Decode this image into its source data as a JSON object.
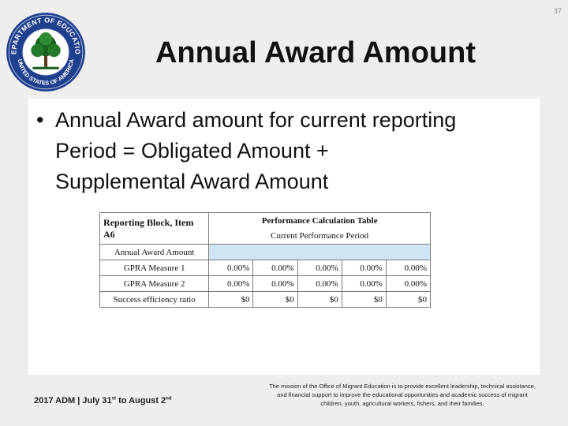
{
  "page_number": "37",
  "seal": {
    "icon": "department-of-education-seal-icon",
    "top_text": "DEPARTMENT OF EDUCATION",
    "bottom_text": "UNITED STATES OF AMERICA",
    "colors": {
      "ring": "#1f3f8f",
      "inner": "#ffffff",
      "tree": "#1c5e20"
    }
  },
  "title": "Annual Award Amount",
  "bullet": {
    "text": "Annual Award amount for current reporting\nPeriod = Obligated Amount +\nSupplemental Award Amount"
  },
  "table": {
    "block_label": "Reporting Block, Item A6",
    "heading": "Performance Calculation Table",
    "subheading": "Current Performance Period",
    "highlight_color": "#cfe5f3",
    "rows": [
      {
        "label": "Annual Award Amount",
        "cells": [
          "",
          "",
          "",
          "",
          ""
        ]
      },
      {
        "label": "GPRA Measure 1",
        "cells": [
          "0.00%",
          "0.00%",
          "0.00%",
          "0.00%",
          "0.00%"
        ]
      },
      {
        "label": "GPRA Measure 2",
        "cells": [
          "0.00%",
          "0.00%",
          "0.00%",
          "0.00%",
          "0.00%"
        ]
      },
      {
        "label": "Success efficiency ratio",
        "cells": [
          "$0",
          "$0",
          "$0",
          "$0",
          "$0"
        ]
      }
    ]
  },
  "footer": {
    "left_prefix": "2017 ADM | July 31",
    "left_sup1": "st",
    "left_mid": " to August 2",
    "left_sup2": "nd",
    "mission": "The mission of the Office of Migrant Education is to provide excellent leadership, technical assistance, and financial support to improve the educational opportunities and academic success of migrant children, youth, agricultural workers, fishers, and their families."
  }
}
